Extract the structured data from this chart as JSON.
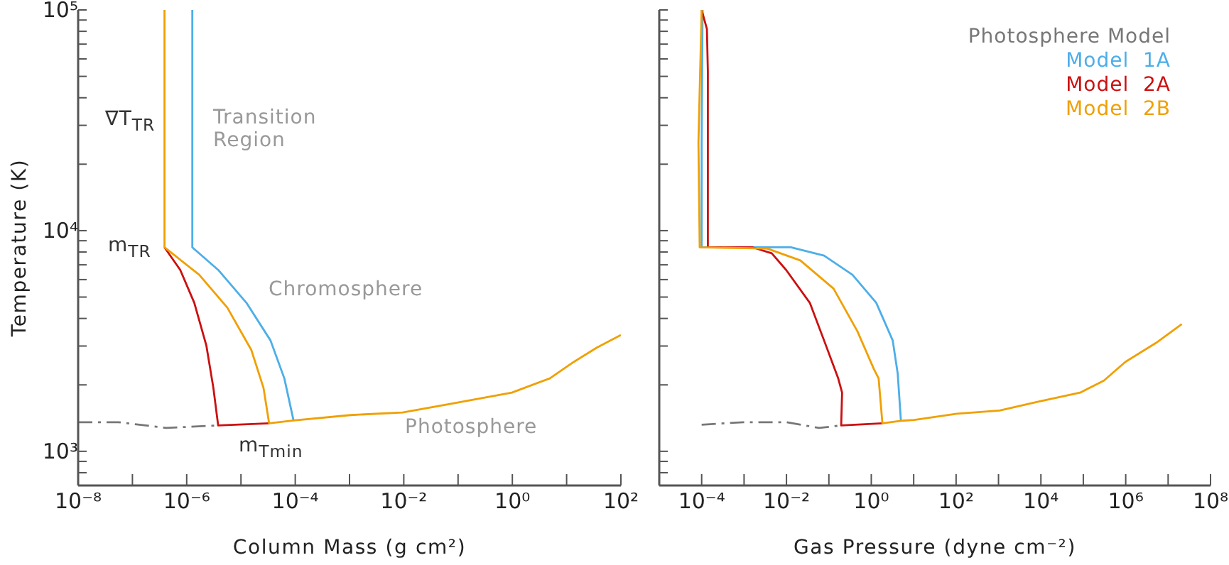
{
  "chart_data": [
    {
      "type": "line",
      "xlabel": "Column Mass (g cm²)",
      "ylabel": "Temperature (K)",
      "log": "xy",
      "legend": false,
      "xlim": [
        1e-08,
        100
      ],
      "ylim": [
        700,
        100000
      ],
      "xticks": [
        {
          "value": 1e-08,
          "label": "10⁻⁸"
        },
        {
          "value": 1e-07,
          "label": null
        },
        {
          "value": 1e-06,
          "label": "10⁻⁶"
        },
        {
          "value": 1e-05,
          "label": null
        },
        {
          "value": 0.0001,
          "label": "10⁻⁴"
        },
        {
          "value": 0.001,
          "label": null
        },
        {
          "value": 0.01,
          "label": "10⁻²"
        },
        {
          "value": 0.1,
          "label": null
        },
        {
          "value": 1,
          "label": "10⁰"
        },
        {
          "value": 10,
          "label": null
        },
        {
          "value": 100,
          "label": "10²"
        }
      ],
      "yticks": [
        {
          "value": 800,
          "label": null
        },
        {
          "value": 900,
          "label": null
        },
        {
          "value": 1000,
          "label": "10³"
        },
        {
          "value": 2000,
          "label": null
        },
        {
          "value": 3000,
          "label": null
        },
        {
          "value": 4000,
          "label": null
        },
        {
          "value": 5000,
          "label": null
        },
        {
          "value": 6000,
          "label": null
        },
        {
          "value": 7000,
          "label": null
        },
        {
          "value": 8000,
          "label": null
        },
        {
          "value": 9000,
          "label": null
        },
        {
          "value": 10000,
          "label": "10⁴"
        },
        {
          "value": 20000,
          "label": null
        },
        {
          "value": 30000,
          "label": null
        },
        {
          "value": 40000,
          "label": null
        },
        {
          "value": 50000,
          "label": null
        },
        {
          "value": 60000,
          "label": null
        },
        {
          "value": 70000,
          "label": null
        },
        {
          "value": 80000,
          "label": null
        },
        {
          "value": 90000,
          "label": null
        },
        {
          "value": 100000,
          "label": "10⁵"
        }
      ],
      "series": [
        {
          "color": "#777777",
          "line_style": "dashed",
          "x": [
            1e-08,
            5.5e-08,
            4.2e-07,
            3.8e-06
          ],
          "values": [
            1355,
            1355,
            1277,
            1310
          ]
        },
        {
          "color": "#4daee8",
          "x": [
            1.27e-06,
            1.27e-06,
            3.8e-06,
            1.26e-05,
            3.5e-05,
            6.3e-05,
            9.3e-05
          ],
          "values": [
            100000,
            8400,
            6640,
            4710,
            3180,
            2140,
            1380
          ]
        },
        {
          "color": "#cc1010",
          "x": [
            3.9e-07,
            7.6e-07,
            1.38e-06,
            2.3e-06,
            3.1e-06,
            3.8e-06,
            3.3e-05
          ],
          "values": [
            8400,
            6640,
            4710,
            3020,
            1940,
            1310,
            1340
          ]
        },
        {
          "color": "#f0a000",
          "x": [
            3.9e-07,
            3.9e-07,
            1.7e-06,
            5.6e-06,
            1.55e-05,
            2.6e-05,
            3.3e-05,
            9.3e-05,
            0.00105,
            0.0095,
            0.087,
            0.98,
            4.9,
            13.5,
            36,
            100
          ],
          "values": [
            100000,
            8400,
            6310,
            4480,
            2880,
            1940,
            1340,
            1380,
            1460,
            1500,
            1655,
            1845,
            2140,
            2540,
            2950,
            3365
          ]
        }
      ],
      "annotations": [
        "∇T$_{TR}$",
        "m$_{TR}$",
        "m$_{Tmin}$",
        "Transition Region",
        "Chromosphere",
        "Photosphere"
      ]
    },
    {
      "type": "line",
      "xlabel": "Gas Pressure (dyne cm⁻²)",
      "log": "xy",
      "legend": "top right",
      "tick_labels": "x",
      "xlim": [
        1e-05,
        100000000.0
      ],
      "ylim": [
        700,
        100000
      ],
      "xticks": [
        {
          "value": 0.0001,
          "label": "10⁻⁴"
        },
        {
          "value": 0.001,
          "label": null
        },
        {
          "value": 0.01,
          "label": "10⁻²"
        },
        {
          "value": 0.1,
          "label": null
        },
        {
          "value": 1,
          "label": "10⁰"
        },
        {
          "value": 10,
          "label": null
        },
        {
          "value": 100,
          "label": "10²"
        },
        {
          "value": 1000,
          "label": null
        },
        {
          "value": 10000,
          "label": "10⁴"
        },
        {
          "value": 100000,
          "label": null
        },
        {
          "value": 1000000,
          "label": "10⁶"
        },
        {
          "value": 10000000,
          "label": null
        },
        {
          "value": 100000000,
          "label": "10⁸"
        }
      ],
      "yticks": [
        {
          "value": 800,
          "label": null
        },
        {
          "value": 900,
          "label": null
        },
        {
          "value": 1000,
          "label": null
        },
        {
          "value": 2000,
          "label": null
        },
        {
          "value": 3000,
          "label": null
        },
        {
          "value": 4000,
          "label": null
        },
        {
          "value": 5000,
          "label": null
        },
        {
          "value": 6000,
          "label": null
        },
        {
          "value": 7000,
          "label": null
        },
        {
          "value": 8000,
          "label": null
        },
        {
          "value": 9000,
          "label": null
        },
        {
          "value": 10000,
          "label": null
        },
        {
          "value": 20000,
          "label": null
        },
        {
          "value": 30000,
          "label": null
        },
        {
          "value": 40000,
          "label": null
        },
        {
          "value": 50000,
          "label": null
        },
        {
          "value": 60000,
          "label": null
        },
        {
          "value": 70000,
          "label": null
        },
        {
          "value": 80000,
          "label": null
        },
        {
          "value": 90000,
          "label": null
        },
        {
          "value": 100000,
          "label": null
        }
      ],
      "series": [
        {
          "name": "Photosphere Model",
          "color": "#777777",
          "line_style": "dashed",
          "x": [
            0.0001,
            0.00096,
            0.0098,
            0.059,
            0.195
          ],
          "values": [
            1320,
            1355,
            1355,
            1276,
            1310
          ]
        },
        {
          "name": "Model  1A",
          "color": "#4daee8",
          "x": [
            0.000105,
            0.0001,
            0.0001,
            0.0127,
            0.077,
            0.36,
            1.31,
            3.2,
            4.2,
            5.0
          ],
          "values": [
            100000,
            25100,
            8400,
            8400,
            7710,
            6310,
            4710,
            3180,
            2250,
            1375
          ]
        },
        {
          "name": "Model  2A",
          "color": "#cc1010",
          "x": [
            0.0001,
            0.000133,
            0.00014,
            0.00014,
            0.0016,
            0.0045,
            0.0098,
            0.0355,
            0.077,
            0.166,
            0.205,
            0.195,
            1.83
          ],
          "values": [
            100000,
            82000,
            52600,
            8400,
            8400,
            7890,
            6640,
            4710,
            3180,
            2140,
            1845,
            1310,
            1340
          ]
        },
        {
          "name": "Model  2B",
          "color": "#f0a000",
          "x": [
            0.0001,
            8.4e-05,
            9e-05,
            0.0035,
            0.0212,
            0.129,
            0.47,
            1.15,
            1.49,
            1.83,
            5.0,
            10.3,
            104,
            1060,
            8300,
            84000,
            305000,
            975000,
            5200000,
            21000000
          ],
          "values": [
            100000,
            25100,
            8400,
            8300,
            7330,
            5460,
            3500,
            2360,
            2140,
            1340,
            1375,
            1387,
            1480,
            1530,
            1675,
            1845,
            2090,
            2540,
            3100,
            3770
          ]
        }
      ]
    }
  ]
}
